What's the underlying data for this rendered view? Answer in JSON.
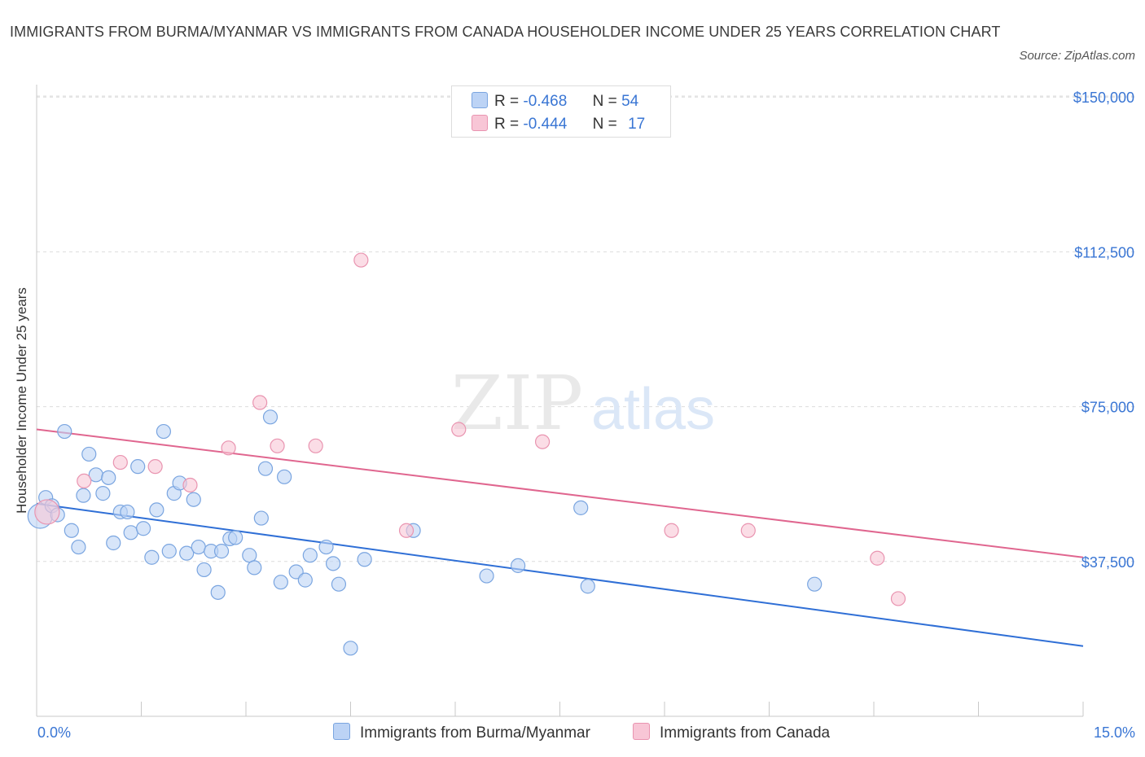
{
  "header": {
    "title": "IMMIGRANTS FROM BURMA/MYANMAR VS IMMIGRANTS FROM CANADA HOUSEHOLDER INCOME UNDER 25 YEARS CORRELATION CHART",
    "source": "Source: ZipAtlas.com"
  },
  "colors": {
    "blue_fill": "#bcd3f5",
    "blue_stroke": "#7aa5e0",
    "blue_line": "#2f6fd6",
    "pink_fill": "#f8c6d6",
    "pink_stroke": "#e994b0",
    "pink_line": "#e0668f",
    "axis_text": "#3a76d4",
    "grid": "#dcdcdc"
  },
  "legend": {
    "rows": [
      {
        "r_label": "R =",
        "r_value": "-0.468",
        "n_label": "N =",
        "n_value": "54"
      },
      {
        "r_label": "R =",
        "r_value": "-0.444",
        "n_label": "N =",
        "n_value": "17"
      }
    ]
  },
  "watermark": {
    "zip": "ZIP",
    "atlas": "atlas"
  },
  "chart_data": {
    "type": "scatter",
    "title": "IMMIGRANTS FROM BURMA/MYANMAR VS IMMIGRANTS FROM CANADA HOUSEHOLDER INCOME UNDER 25 YEARS CORRELATION CHART",
    "xlabel": "",
    "ylabel": "Householder Income Under 25 years",
    "xlim": [
      0,
      15
    ],
    "ylim": [
      0,
      153000
    ],
    "x_tick_labels": [
      "0.0%",
      "15.0%"
    ],
    "y_ticks": [
      37500,
      75000,
      112500,
      150000
    ],
    "y_tick_labels": [
      "$37,500",
      "$75,000",
      "$112,500",
      "$150,000"
    ],
    "series": [
      {
        "name": "Immigrants from Burma/Myanmar",
        "color": "blue",
        "trend": {
          "x": [
            0,
            15
          ],
          "y": [
            51500,
            17000
          ]
        },
        "points": [
          {
            "x": 0.05,
            "y": 48500,
            "big": true
          },
          {
            "x": 0.13,
            "y": 53000
          },
          {
            "x": 0.22,
            "y": 51000
          },
          {
            "x": 0.3,
            "y": 48800
          },
          {
            "x": 0.4,
            "y": 69000
          },
          {
            "x": 0.5,
            "y": 45000
          },
          {
            "x": 0.6,
            "y": 41000
          },
          {
            "x": 0.67,
            "y": 53500
          },
          {
            "x": 0.75,
            "y": 63500
          },
          {
            "x": 0.85,
            "y": 58500
          },
          {
            "x": 0.95,
            "y": 54000
          },
          {
            "x": 1.03,
            "y": 57800
          },
          {
            "x": 1.1,
            "y": 42000
          },
          {
            "x": 1.2,
            "y": 49500
          },
          {
            "x": 1.3,
            "y": 49500
          },
          {
            "x": 1.35,
            "y": 44500
          },
          {
            "x": 1.45,
            "y": 60500
          },
          {
            "x": 1.53,
            "y": 45500
          },
          {
            "x": 1.65,
            "y": 38500
          },
          {
            "x": 1.72,
            "y": 50000
          },
          {
            "x": 1.82,
            "y": 69000
          },
          {
            "x": 1.9,
            "y": 40000
          },
          {
            "x": 1.97,
            "y": 54000
          },
          {
            "x": 2.05,
            "y": 56500
          },
          {
            "x": 2.15,
            "y": 39500
          },
          {
            "x": 2.25,
            "y": 52500
          },
          {
            "x": 2.32,
            "y": 41000
          },
          {
            "x": 2.4,
            "y": 35500
          },
          {
            "x": 2.5,
            "y": 40000
          },
          {
            "x": 2.6,
            "y": 30000
          },
          {
            "x": 2.65,
            "y": 40000
          },
          {
            "x": 2.77,
            "y": 43000
          },
          {
            "x": 2.85,
            "y": 43300
          },
          {
            "x": 3.05,
            "y": 39000
          },
          {
            "x": 3.12,
            "y": 36000
          },
          {
            "x": 3.22,
            "y": 48000
          },
          {
            "x": 3.28,
            "y": 60000
          },
          {
            "x": 3.35,
            "y": 72500
          },
          {
            "x": 3.5,
            "y": 32500
          },
          {
            "x": 3.55,
            "y": 58000
          },
          {
            "x": 3.72,
            "y": 35000
          },
          {
            "x": 3.85,
            "y": 33000
          },
          {
            "x": 3.92,
            "y": 39000
          },
          {
            "x": 4.15,
            "y": 41000
          },
          {
            "x": 4.25,
            "y": 37000
          },
          {
            "x": 4.33,
            "y": 32000
          },
          {
            "x": 4.5,
            "y": 16500
          },
          {
            "x": 4.7,
            "y": 38000
          },
          {
            "x": 5.4,
            "y": 45000
          },
          {
            "x": 6.45,
            "y": 34000
          },
          {
            "x": 6.9,
            "y": 36500
          },
          {
            "x": 7.8,
            "y": 50500
          },
          {
            "x": 7.9,
            "y": 31500
          },
          {
            "x": 11.15,
            "y": 32000
          }
        ]
      },
      {
        "name": "Immigrants from Canada",
        "color": "pink",
        "trend": {
          "x": [
            0,
            15
          ],
          "y": [
            69500,
            38500
          ]
        },
        "points": [
          {
            "x": 0.15,
            "y": 49500,
            "big": true
          },
          {
            "x": 0.68,
            "y": 57000
          },
          {
            "x": 1.2,
            "y": 61500
          },
          {
            "x": 1.7,
            "y": 60500
          },
          {
            "x": 2.2,
            "y": 56000
          },
          {
            "x": 2.75,
            "y": 65000
          },
          {
            "x": 3.2,
            "y": 76000
          },
          {
            "x": 3.45,
            "y": 65500
          },
          {
            "x": 4.0,
            "y": 65500
          },
          {
            "x": 4.65,
            "y": 110500
          },
          {
            "x": 5.3,
            "y": 45000
          },
          {
            "x": 6.05,
            "y": 69500
          },
          {
            "x": 7.25,
            "y": 66500
          },
          {
            "x": 9.1,
            "y": 45000
          },
          {
            "x": 10.2,
            "y": 45000
          },
          {
            "x": 12.05,
            "y": 38300
          },
          {
            "x": 12.35,
            "y": 28500
          }
        ]
      }
    ]
  }
}
